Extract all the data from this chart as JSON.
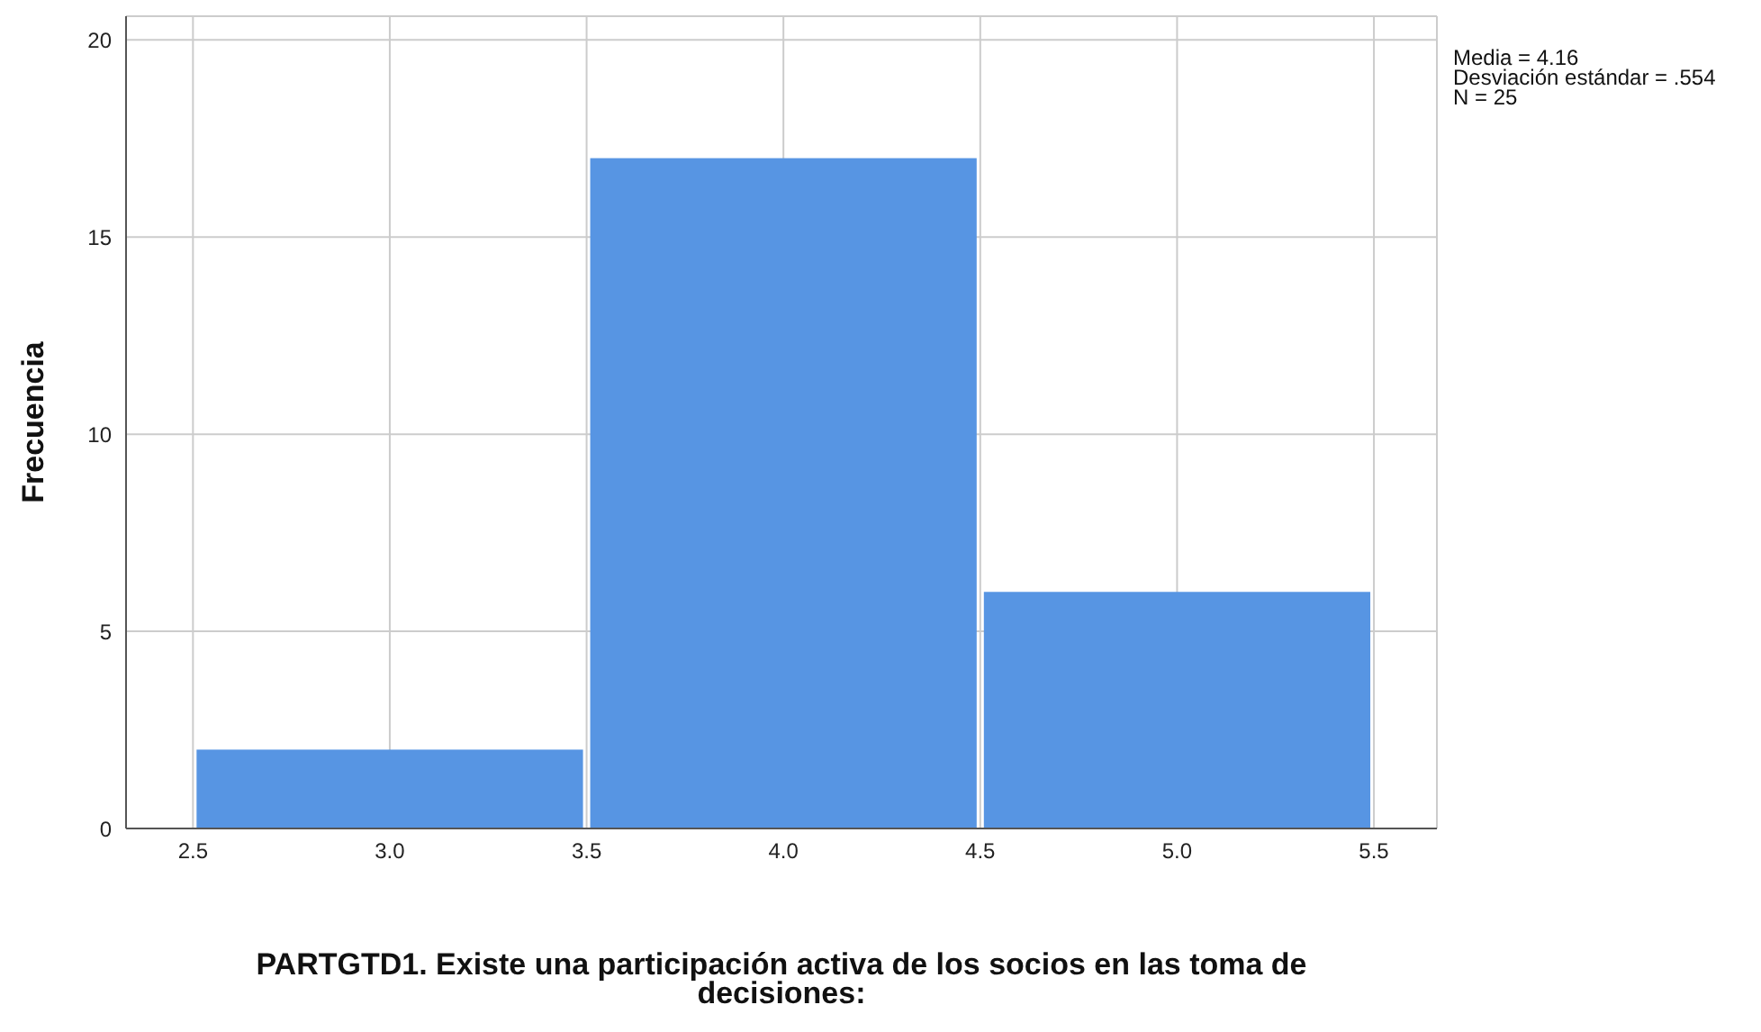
{
  "chart_data": {
    "type": "histogram",
    "xlabel": "PARTGTD1. Existe una participación activa de los socios en las toma de decisiones:",
    "ylabel": "Frecuencia",
    "bins": [
      2.5,
      3.5,
      4.5,
      5.5
    ],
    "values": [
      2,
      17,
      6
    ],
    "color": "#5795e3",
    "xlim": [
      2.33,
      5.66
    ],
    "xticks": [
      2.5,
      {
        "value": 3,
        "label": "3.0"
      },
      3.5,
      {
        "value": 4,
        "label": "4.0"
      },
      4.5,
      {
        "value": 5,
        "label": "5.0"
      },
      5.5
    ],
    "ylim": [
      0,
      20.6
    ],
    "yticks": [
      0,
      5,
      10,
      15,
      20
    ],
    "grid": true,
    "annotations": [
      "Media = 4.16",
      "Desviación estándar = .554",
      "N = 25"
    ]
  }
}
